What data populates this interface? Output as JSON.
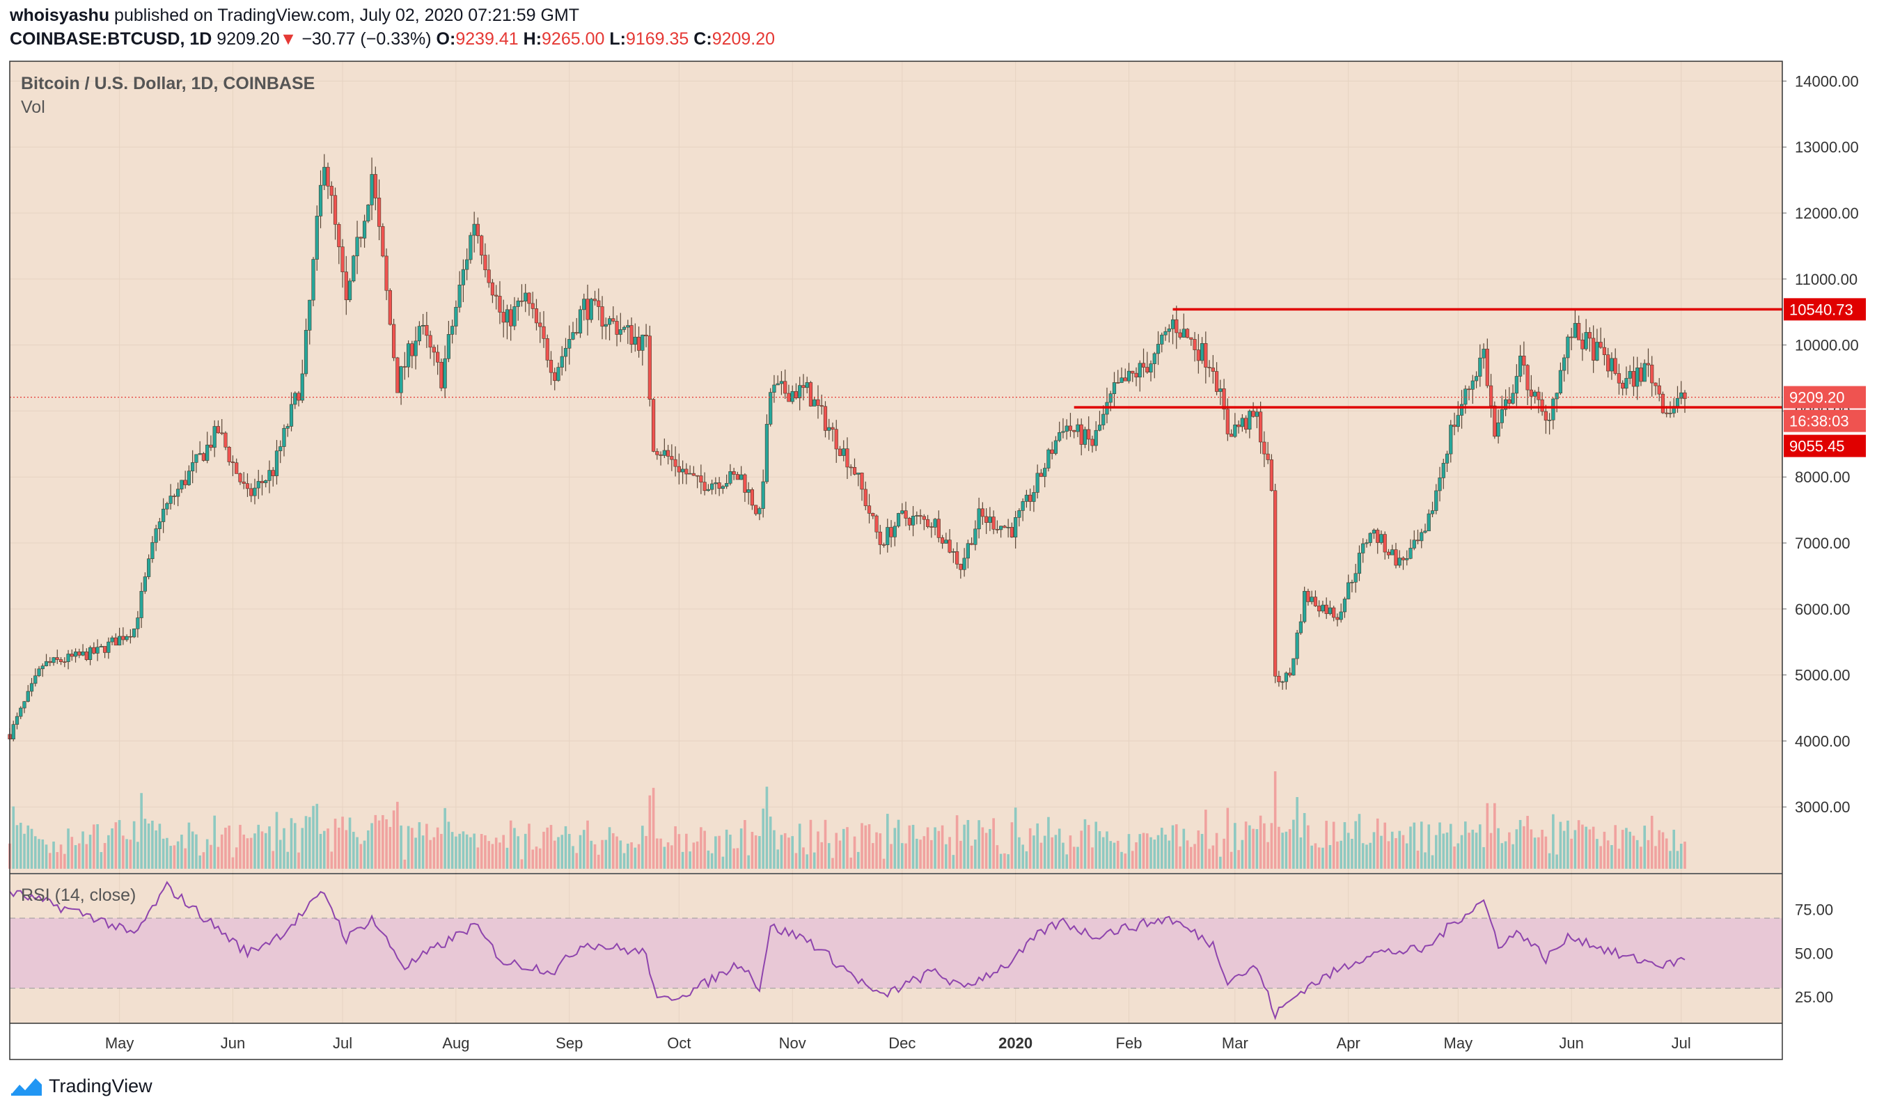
{
  "header": {
    "author": "whoisyashu",
    "published_text": "published on TradingView.com, July 02, 2020 07:21:59 GMT",
    "symbol": "COINBASE:BTCUSD, 1D",
    "last": "9209.20",
    "change_arrow": "▼",
    "change": "−30.77 (−0.33%)",
    "o_label": "O:",
    "o": "9239.41",
    "h_label": "H:",
    "h": "9265.00",
    "l_label": "L:",
    "l": "9169.35",
    "c_label": "C:",
    "c": "9209.20"
  },
  "pane": {
    "title": "Bitcoin / U.S. Dollar, 1D, COINBASE",
    "vol_label": "Vol",
    "rsi_label": "RSI (14, close)"
  },
  "footer": {
    "brand": "TradingView"
  },
  "colors": {
    "background": "#f2e0d0",
    "up": "#26a69a",
    "down": "#ef5350",
    "candle_border": "#4a3a2a",
    "level_line": "#e00000",
    "rsi_line": "#8e44ad",
    "rsi_band": "#e8c8d6"
  },
  "chart_data": {
    "type": "candlestick",
    "price_axis": {
      "ticks": [
        3000,
        4000,
        5000,
        6000,
        7000,
        8000,
        9000,
        10000,
        11000,
        12000,
        13000,
        14000
      ],
      "tick_labels": [
        "3000.00",
        "4000.00",
        "5000.00",
        "6000.00",
        "7000.00",
        "8000.00",
        "9000.00",
        "10000.00",
        "11000.00",
        "12000.00",
        "13000.00",
        "14000.00"
      ],
      "range": [
        2000,
        14300
      ]
    },
    "time_axis": {
      "labels": [
        "May",
        "Jun",
        "Jul",
        "Aug",
        "Sep",
        "Oct",
        "Nov",
        "Dec",
        "2020",
        "Feb",
        "Mar",
        "Apr",
        "May",
        "Jun",
        "Jul"
      ],
      "bold": [
        false,
        false,
        false,
        false,
        false,
        false,
        false,
        false,
        true,
        false,
        false,
        false,
        false,
        false,
        false
      ]
    },
    "resistance": {
      "value": 10540.73,
      "label": "10540.73",
      "start": "2020-02-13"
    },
    "support": {
      "value": 9055.45,
      "label": "9055.45",
      "start": "2020-01-17"
    },
    "last_price": {
      "value": 9209.2,
      "label": "9209.20",
      "countdown": "16:38:03"
    },
    "rsi": {
      "levels": [
        30,
        70
      ],
      "ticks": [
        25,
        50,
        75
      ],
      "tick_labels": [
        "25.00",
        "50.00",
        "75.00"
      ],
      "range": [
        10,
        95
      ]
    },
    "anchors": [
      {
        "date": "2019-04-01",
        "price": 4100
      },
      {
        "date": "2019-04-10",
        "price": 5150
      },
      {
        "date": "2019-04-25",
        "price": 5350
      },
      {
        "date": "2019-05-05",
        "price": 5700
      },
      {
        "date": "2019-05-12",
        "price": 7400
      },
      {
        "date": "2019-05-17",
        "price": 7800
      },
      {
        "date": "2019-05-28",
        "price": 8700
      },
      {
        "date": "2019-06-05",
        "price": 7700
      },
      {
        "date": "2019-06-12",
        "price": 8100
      },
      {
        "date": "2019-06-20",
        "price": 9500
      },
      {
        "date": "2019-06-26",
        "price": 12900
      },
      {
        "date": "2019-07-02",
        "price": 10600
      },
      {
        "date": "2019-07-09",
        "price": 12600
      },
      {
        "date": "2019-07-16",
        "price": 9400
      },
      {
        "date": "2019-07-22",
        "price": 10300
      },
      {
        "date": "2019-07-28",
        "price": 9500
      },
      {
        "date": "2019-08-06",
        "price": 11900
      },
      {
        "date": "2019-08-14",
        "price": 10300
      },
      {
        "date": "2019-08-20",
        "price": 10700
      },
      {
        "date": "2019-08-28",
        "price": 9600
      },
      {
        "date": "2019-09-05",
        "price": 10600
      },
      {
        "date": "2019-09-22",
        "price": 10000
      },
      {
        "date": "2019-09-24",
        "price": 8500
      },
      {
        "date": "2019-10-06",
        "price": 7900
      },
      {
        "date": "2019-10-18",
        "price": 8000
      },
      {
        "date": "2019-10-23",
        "price": 7400
      },
      {
        "date": "2019-10-26",
        "price": 9300
      },
      {
        "date": "2019-11-05",
        "price": 9300
      },
      {
        "date": "2019-11-18",
        "price": 8100
      },
      {
        "date": "2019-11-25",
        "price": 7000
      },
      {
        "date": "2019-12-01",
        "price": 7400
      },
      {
        "date": "2019-12-10",
        "price": 7300
      },
      {
        "date": "2019-12-17",
        "price": 6650
      },
      {
        "date": "2019-12-22",
        "price": 7400
      },
      {
        "date": "2019-12-31",
        "price": 7200
      },
      {
        "date": "2020-01-06",
        "price": 7800
      },
      {
        "date": "2020-01-14",
        "price": 8800
      },
      {
        "date": "2020-01-22",
        "price": 8500
      },
      {
        "date": "2020-01-28",
        "price": 9300
      },
      {
        "date": "2020-02-08",
        "price": 9800
      },
      {
        "date": "2020-02-13",
        "price": 10350
      },
      {
        "date": "2020-02-24",
        "price": 9700
      },
      {
        "date": "2020-02-28",
        "price": 8700
      },
      {
        "date": "2020-03-07",
        "price": 8900
      },
      {
        "date": "2020-03-11",
        "price": 7900
      },
      {
        "date": "2020-03-12",
        "price": 4900
      },
      {
        "date": "2020-03-16",
        "price": 5000
      },
      {
        "date": "2020-03-20",
        "price": 6200
      },
      {
        "date": "2020-03-29",
        "price": 5900
      },
      {
        "date": "2020-04-07",
        "price": 7200
      },
      {
        "date": "2020-04-15",
        "price": 6700
      },
      {
        "date": "2020-04-22",
        "price": 7100
      },
      {
        "date": "2020-04-29",
        "price": 8700
      },
      {
        "date": "2020-05-08",
        "price": 9900
      },
      {
        "date": "2020-05-11",
        "price": 8600
      },
      {
        "date": "2020-05-18",
        "price": 9700
      },
      {
        "date": "2020-05-25",
        "price": 8800
      },
      {
        "date": "2020-06-01",
        "price": 10200
      },
      {
        "date": "2020-06-10",
        "price": 9800
      },
      {
        "date": "2020-06-15",
        "price": 9400
      },
      {
        "date": "2020-06-22",
        "price": 9650
      },
      {
        "date": "2020-06-27",
        "price": 9000
      },
      {
        "date": "2020-07-02",
        "price": 9209
      }
    ],
    "rsi_anchors": [
      {
        "date": "2019-04-01",
        "value": 85
      },
      {
        "date": "2019-04-25",
        "value": 70
      },
      {
        "date": "2019-05-05",
        "value": 60
      },
      {
        "date": "2019-05-14",
        "value": 88
      },
      {
        "date": "2019-06-05",
        "value": 50
      },
      {
        "date": "2019-06-15",
        "value": 62
      },
      {
        "date": "2019-06-26",
        "value": 85
      },
      {
        "date": "2019-07-02",
        "value": 58
      },
      {
        "date": "2019-07-09",
        "value": 70
      },
      {
        "date": "2019-07-18",
        "value": 42
      },
      {
        "date": "2019-08-06",
        "value": 66
      },
      {
        "date": "2019-08-14",
        "value": 45
      },
      {
        "date": "2019-08-28",
        "value": 40
      },
      {
        "date": "2019-09-05",
        "value": 56
      },
      {
        "date": "2019-09-22",
        "value": 50
      },
      {
        "date": "2019-09-25",
        "value": 22
      },
      {
        "date": "2019-10-06",
        "value": 30
      },
      {
        "date": "2019-10-18",
        "value": 45
      },
      {
        "date": "2019-10-23",
        "value": 30
      },
      {
        "date": "2019-10-26",
        "value": 65
      },
      {
        "date": "2019-11-05",
        "value": 58
      },
      {
        "date": "2019-11-25",
        "value": 25
      },
      {
        "date": "2019-12-10",
        "value": 40
      },
      {
        "date": "2019-12-17",
        "value": 30
      },
      {
        "date": "2019-12-31",
        "value": 45
      },
      {
        "date": "2020-01-08",
        "value": 62
      },
      {
        "date": "2020-01-14",
        "value": 68
      },
      {
        "date": "2020-01-22",
        "value": 60
      },
      {
        "date": "2020-02-12",
        "value": 70
      },
      {
        "date": "2020-02-24",
        "value": 55
      },
      {
        "date": "2020-02-28",
        "value": 35
      },
      {
        "date": "2020-03-07",
        "value": 42
      },
      {
        "date": "2020-03-12",
        "value": 15
      },
      {
        "date": "2020-03-20",
        "value": 30
      },
      {
        "date": "2020-04-07",
        "value": 50
      },
      {
        "date": "2020-04-22",
        "value": 52
      },
      {
        "date": "2020-04-30",
        "value": 68
      },
      {
        "date": "2020-05-08",
        "value": 80
      },
      {
        "date": "2020-05-12",
        "value": 55
      },
      {
        "date": "2020-05-18",
        "value": 62
      },
      {
        "date": "2020-05-25",
        "value": 47
      },
      {
        "date": "2020-06-01",
        "value": 60
      },
      {
        "date": "2020-06-15",
        "value": 48
      },
      {
        "date": "2020-06-27",
        "value": 43
      },
      {
        "date": "2020-07-02",
        "value": 47
      }
    ]
  }
}
